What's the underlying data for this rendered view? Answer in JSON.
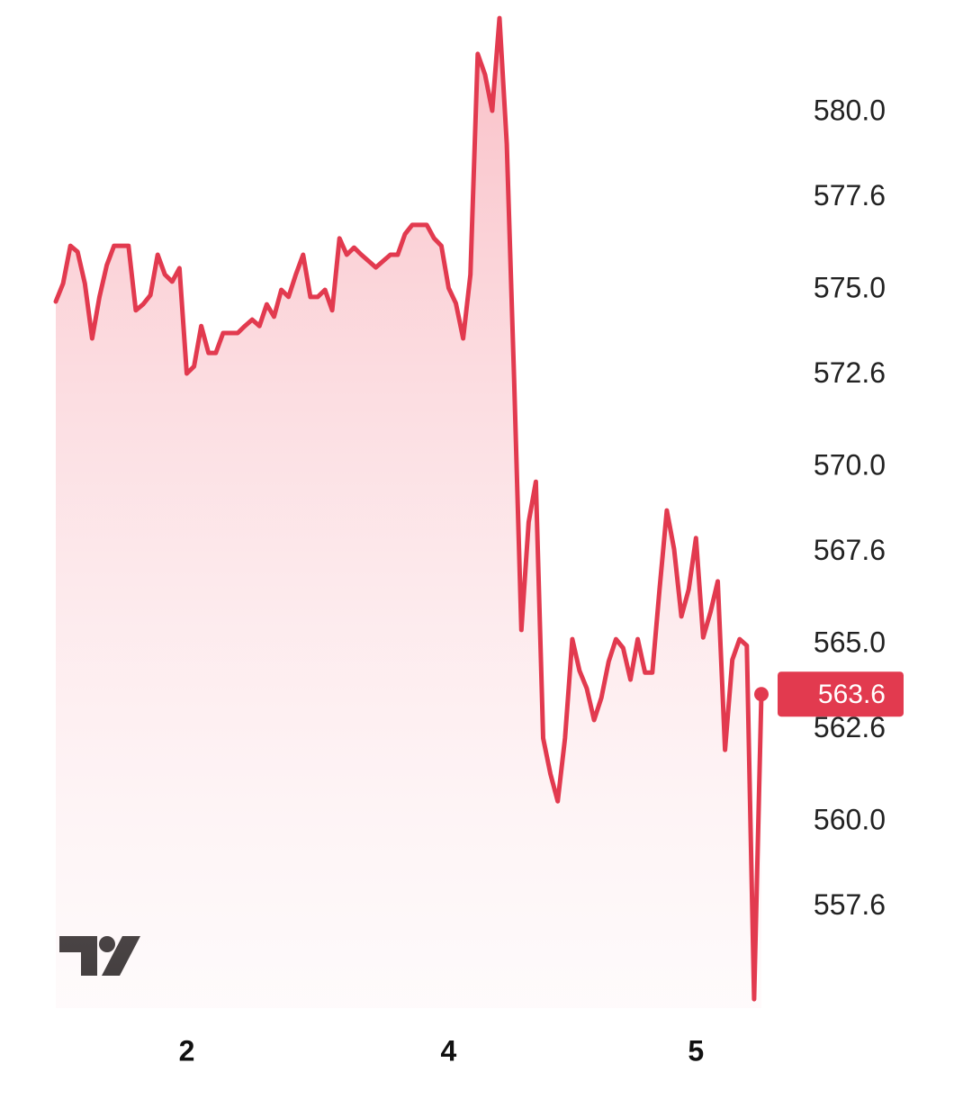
{
  "chart_data": {
    "type": "area",
    "x": [
      0,
      1,
      2,
      3,
      4,
      5,
      6,
      7,
      8,
      9,
      10,
      11,
      12,
      13,
      14,
      15,
      16,
      17,
      18,
      19,
      20,
      21,
      22,
      23,
      24,
      25,
      26,
      27,
      28,
      29,
      30,
      31,
      32,
      33,
      34,
      35,
      36,
      37,
      38,
      39,
      40,
      41,
      42,
      43,
      44,
      45,
      46,
      47,
      48,
      49,
      50,
      51,
      52,
      53,
      54,
      55,
      56,
      57,
      58,
      59,
      60,
      61,
      62,
      63,
      64,
      65,
      66,
      67,
      68,
      69,
      70,
      71,
      72,
      73,
      74,
      75,
      76,
      77,
      78,
      79,
      80,
      81,
      82,
      83,
      84,
      85,
      86,
      87,
      88,
      89,
      90,
      91,
      92,
      93,
      94,
      95,
      96,
      97
    ],
    "series": [
      {
        "color": "#e23a4f",
        "values": [
          574.67,
          575.18,
          576.24,
          576.07,
          575.18,
          573.63,
          574.8,
          575.69,
          576.24,
          576.24,
          576.24,
          574.42,
          574.59,
          574.85,
          575.99,
          575.43,
          575.23,
          575.61,
          572.64,
          572.84,
          573.98,
          573.22,
          573.22,
          573.78,
          573.78,
          573.78,
          573.98,
          574.16,
          573.98,
          574.59,
          574.24,
          575.0,
          574.8,
          575.43,
          575.99,
          574.8,
          574.8,
          575.0,
          574.42,
          576.45,
          575.99,
          576.19,
          575.99,
          575.81,
          575.63,
          575.81,
          575.99,
          575.99,
          576.57,
          576.83,
          576.83,
          576.83,
          576.45,
          576.24,
          575.05,
          574.62,
          573.63,
          575.43,
          581.65,
          581.07,
          580.05,
          582.66,
          579.11,
          572.51,
          565.41,
          568.45,
          569.59,
          562.36,
          561.35,
          560.58,
          562.36,
          565.15,
          564.26,
          563.76,
          562.87,
          563.5,
          564.52,
          565.15,
          564.9,
          564.01,
          565.15,
          564.21,
          564.21,
          566.55,
          568.78,
          567.69,
          565.79,
          566.55,
          568.0,
          565.2,
          565.91,
          566.78,
          562.03,
          564.57,
          565.15,
          564.97,
          555.0,
          563.6
        ]
      }
    ],
    "xlim": [
      0,
      97
    ],
    "xticks": [
      {
        "value": 18,
        "label": "2"
      },
      {
        "value": 54,
        "label": "4"
      },
      {
        "value": 88,
        "label": "5"
      }
    ],
    "ylim": [
      554.75,
      583.17
    ],
    "yticks": [
      {
        "value": 580,
        "label": "580.0"
      },
      577.6,
      {
        "value": 575,
        "label": "575.0"
      },
      572.6,
      {
        "value": 570,
        "label": "570.0"
      },
      567.6,
      {
        "value": 565,
        "label": "565.0"
      },
      562.6,
      {
        "value": 560,
        "label": "560.0"
      },
      557.6
    ]
  }
}
